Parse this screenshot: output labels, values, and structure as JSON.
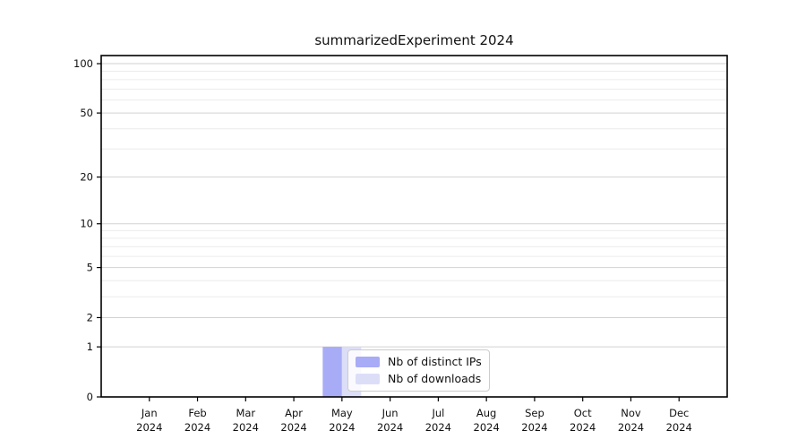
{
  "title": "summarizedExperiment 2024",
  "legend": {
    "items": [
      {
        "label": "Nb of distinct IPs",
        "color": "#a8abf6"
      },
      {
        "label": "Nb of downloads",
        "color": "#dcdef8"
      }
    ]
  },
  "axes": {
    "y_tick_labels": [
      "100",
      "50",
      "20",
      "10",
      "5",
      "2",
      "1",
      "0"
    ],
    "x_month_labels": [
      "Jan",
      "Feb",
      "Mar",
      "Apr",
      "May",
      "Jun",
      "Jul",
      "Aug",
      "Sep",
      "Oct",
      "Nov",
      "Dec"
    ],
    "x_year_label": "2024"
  },
  "colors": {
    "grid_major": "#d2d2d2",
    "grid_minor": "#ececec",
    "axis": "#000000",
    "tick_text": "#111111"
  },
  "chart_data": {
    "type": "bar",
    "title": "summarizedExperiment 2024",
    "categories": [
      "Jan 2024",
      "Feb 2024",
      "Mar 2024",
      "Apr 2024",
      "May 2024",
      "Jun 2024",
      "Jul 2024",
      "Aug 2024",
      "Sep 2024",
      "Oct 2024",
      "Nov 2024",
      "Dec 2024"
    ],
    "series": [
      {
        "name": "Nb of distinct IPs",
        "color": "#a8abf6",
        "values": [
          0,
          0,
          0,
          0,
          1,
          0,
          0,
          0,
          0,
          0,
          0,
          0
        ]
      },
      {
        "name": "Nb of downloads",
        "color": "#dcdef8",
        "values": [
          0,
          0,
          0,
          0,
          1,
          0,
          0,
          0,
          0,
          0,
          0,
          0
        ]
      }
    ],
    "yscale": "log1p",
    "ylim": [
      0,
      112
    ],
    "y_major_ticks": [
      0,
      1,
      2,
      5,
      10,
      20,
      50,
      100
    ],
    "y_minor_gridlines": [
      3,
      4,
      6,
      7,
      8,
      9,
      30,
      40,
      60,
      70,
      80,
      90
    ],
    "grid": true,
    "legend_position": "lower center"
  }
}
